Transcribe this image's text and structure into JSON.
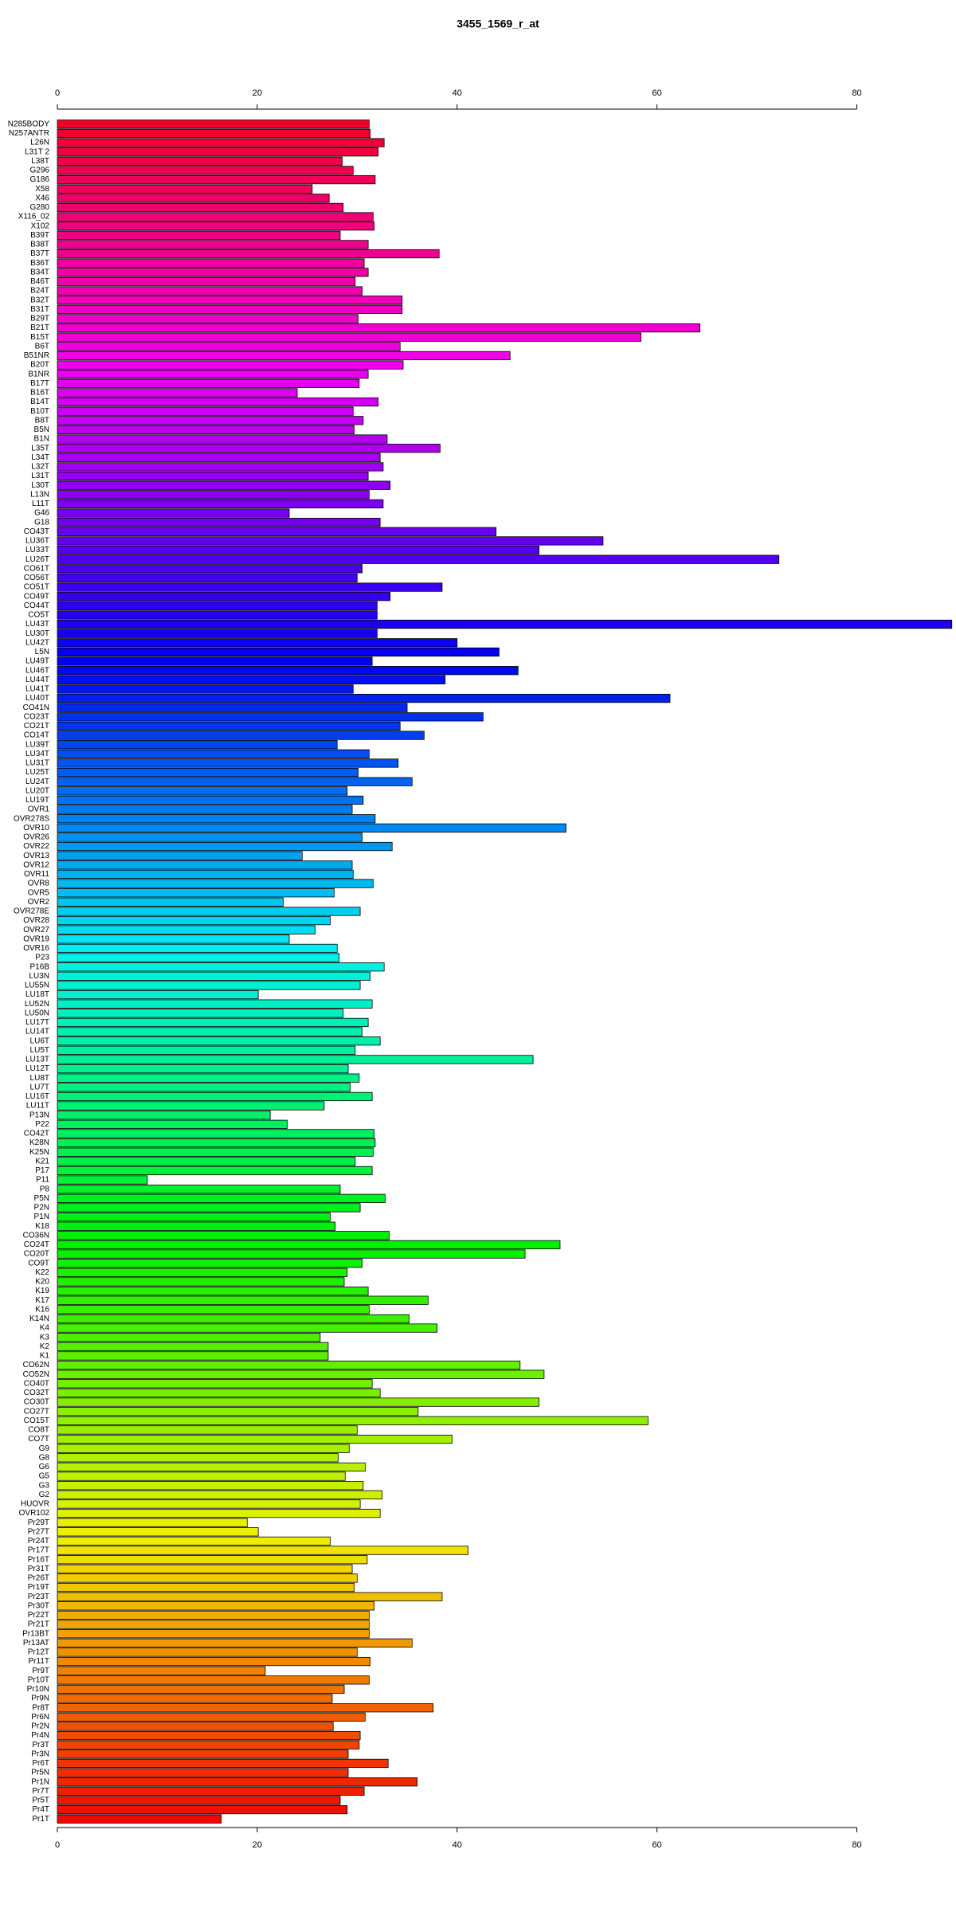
{
  "chart_data": {
    "type": "barh",
    "title": "3455_1569_r_at",
    "categories": [
      "N285BODY",
      "N257ANTR",
      "L26N",
      "L31T 2",
      "L38T",
      "G296",
      "G186",
      "X58",
      "X46",
      "G280",
      "X116_02",
      "X102",
      "B39T",
      "B38T",
      "B37T",
      "B36T",
      "B34T",
      "B46T",
      "B24T",
      "B32T",
      "B31T",
      "B29T",
      "B21T",
      "B15T",
      "B6T",
      "B51NR",
      "B20T",
      "B1NR",
      "B17T",
      "B16T",
      "B14T",
      "B10T",
      "B8T",
      "B5N",
      "B1N",
      "L35T",
      "L34T",
      "L32T",
      "L31T",
      "L30T",
      "L13N",
      "L11T",
      "G46",
      "G18",
      "CO43T",
      "LU36T",
      "LU33T",
      "LU26T",
      "CO61T",
      "CO56T",
      "CO51T",
      "CO49T",
      "CO44T",
      "CO5T",
      "LU43T",
      "LU30T",
      "LU42T",
      "L5N",
      "LU49T",
      "LU46T",
      "LU44T",
      "LU41T",
      "LU40T",
      "CO41N",
      "CO23T",
      "CO21T",
      "CO14T",
      "LU39T",
      "LU34T",
      "LU31T",
      "LU25T",
      "LU24T",
      "LU20T",
      "LU19T",
      "OVR1",
      "OVR278S",
      "OVR10",
      "OVR26",
      "OVR22",
      "OVR13",
      "OVR12",
      "OVR11",
      "OVR8",
      "OVR5",
      "OVR2",
      "OVR278E",
      "OVR28",
      "OVR27",
      "OVR19",
      "OVR16",
      "P23",
      "P16B",
      "LU3N",
      "LU55N",
      "LU18T",
      "LU52N",
      "LU50N",
      "LU17T",
      "LU14T",
      "LU6T",
      "LU5T",
      "LU13T",
      "LU12T",
      "LU8T",
      "LU7T",
      "LU16T",
      "LU11T",
      "P13N",
      "P22",
      "CO42T",
      "K28N",
      "K25N",
      "K21",
      "P17",
      "P11",
      "P8",
      "P5N",
      "P2N",
      "P1N",
      "K18",
      "CO36N",
      "CO24T",
      "CO20T",
      "CO9T",
      "K22",
      "K20",
      "K19",
      "K17",
      "K16",
      "K14N",
      "K4",
      "K3",
      "K2",
      "K1",
      "CO62N",
      "CO52N",
      "CO40T",
      "CO32T",
      "CO30T",
      "CO27T",
      "CO15T",
      "CO8T",
      "CO7T",
      "G9",
      "G8",
      "G6",
      "G5",
      "G3",
      "G2",
      "HUOVR",
      "OVR102",
      "Pr29T",
      "Pr27T",
      "Pr24T",
      "Pr17T",
      "Pr16T",
      "Pr31T",
      "Pr26T",
      "Pr19T",
      "Pr23T",
      "Pr30T",
      "Pr22T",
      "Pr21T",
      "Pr13BT",
      "Pr13AT",
      "Pr12T",
      "Pr11T",
      "Pr9T",
      "Pr10T",
      "Pr10N",
      "Pr9N",
      "Pr8T",
      "Pr6N",
      "Pr2N",
      "Pr4N",
      "Pr3T",
      "Pr3N",
      "Pr6T",
      "Pr5N",
      "Pr1N",
      "Pr7T",
      "Pr5T",
      "Pr4T",
      "Pr1T"
    ],
    "values": [
      31.2,
      31.3,
      32.7,
      32.1,
      28.5,
      29.6,
      31.8,
      25.5,
      27.2,
      28.6,
      31.6,
      31.7,
      28.3,
      31.1,
      38.2,
      30.7,
      31.1,
      29.8,
      30.5,
      34.5,
      34.5,
      30.1,
      64.3,
      58.4,
      34.3,
      45.3,
      34.6,
      31.1,
      30.2,
      24.0,
      32.1,
      29.6,
      30.6,
      29.7,
      33.0,
      38.3,
      32.3,
      32.6,
      31.1,
      33.3,
      31.2,
      32.6,
      23.2,
      32.3,
      43.9,
      54.6,
      48.2,
      72.2,
      30.5,
      30.0,
      38.5,
      33.3,
      32.0,
      32.0,
      89.5,
      32.0,
      40.0,
      44.2,
      31.5,
      46.1,
      38.8,
      29.6,
      61.3,
      35.0,
      42.6,
      34.3,
      36.7,
      28.0,
      31.2,
      34.1,
      30.1,
      35.5,
      29.0,
      30.6,
      29.5,
      31.8,
      50.9,
      30.5,
      33.5,
      24.5,
      29.5,
      29.6,
      31.6,
      27.7,
      22.6,
      30.3,
      27.3,
      25.8,
      23.2,
      28.0,
      28.2,
      32.7,
      31.3,
      30.3,
      20.1,
      31.5,
      28.6,
      31.1,
      30.5,
      32.3,
      29.8,
      47.6,
      29.1,
      30.2,
      29.3,
      31.5,
      26.7,
      21.3,
      23.0,
      31.7,
      31.8,
      31.6,
      29.8,
      31.5,
      9.0,
      28.3,
      32.8,
      30.3,
      27.3,
      27.8,
      33.2,
      50.3,
      46.8,
      30.5,
      29.0,
      28.7,
      31.1,
      37.1,
      31.2,
      35.2,
      38.0,
      26.3,
      27.1,
      27.1,
      46.3,
      48.7,
      31.5,
      32.3,
      48.2,
      36.1,
      59.1,
      30.0,
      39.5,
      29.2,
      28.1,
      30.8,
      28.8,
      30.6,
      32.5,
      30.3,
      32.3,
      19.0,
      20.1,
      27.3,
      41.1,
      31.0,
      29.5,
      30.0,
      29.7,
      38.5,
      31.7,
      31.2,
      31.2,
      31.2,
      35.5,
      30.0,
      31.3,
      20.8,
      31.2,
      28.7,
      27.5,
      37.6,
      30.8,
      27.6,
      30.3,
      30.2,
      29.1,
      33.1,
      29.1,
      36.0,
      30.7,
      28.3,
      29.0,
      16.4
    ],
    "colors": {
      "scale": "hue",
      "from": 350,
      "to": 2
    },
    "xlim": [
      0,
      89.6
    ],
    "xticks": [
      0,
      20,
      40,
      60,
      80
    ]
  }
}
